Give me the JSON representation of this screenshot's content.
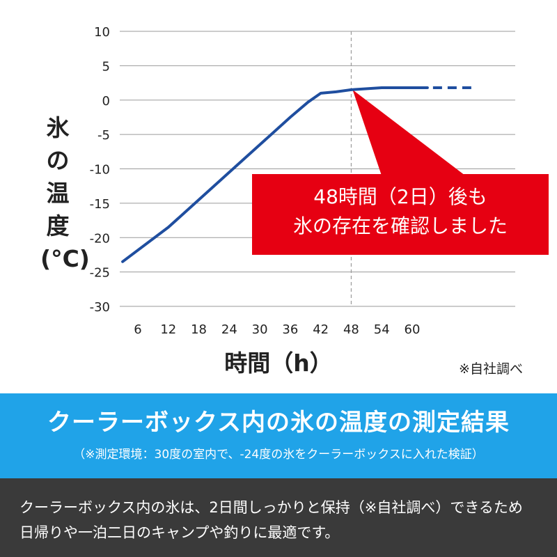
{
  "chart_data": {
    "type": "line",
    "y_title_lines": [
      "氷",
      "の",
      "温",
      "度",
      "(°C)"
    ],
    "xlabel": "時間（h）",
    "ylim": [
      -30,
      10
    ],
    "yticks": [
      "10",
      "5",
      "0",
      "-5",
      "-10",
      "-15",
      "-20",
      "-25",
      "-30"
    ],
    "xticks": [
      "6",
      "12",
      "18",
      "24",
      "30",
      "36",
      "42",
      "48",
      "54",
      "60"
    ],
    "grid": true,
    "series": [
      {
        "color": "#1f4e9f",
        "x": [
          3,
          12,
          18,
          24,
          30,
          36,
          39.5,
          42,
          45,
          48,
          54,
          60,
          63
        ],
        "y": [
          -23.5,
          -18.5,
          -14.5,
          -10.5,
          -6.5,
          -2.5,
          -0.3,
          1,
          1.2,
          1.5,
          1.8,
          1.8,
          1.8
        ],
        "projected": {
          "x": [
            63,
            72
          ],
          "y": [
            1.8,
            1.8
          ]
        }
      }
    ],
    "marker_x": 48,
    "callout_lines": [
      "48時間（2日）後も",
      "氷の存在を確認しました"
    ],
    "callout_color": "#e60012",
    "note": "※自社調べ"
  },
  "banner": {
    "title": "クーラーボックス内の氷の温度の測定結果",
    "subtitle": "（※測定環境：30度の室内で、-24度の氷をクーラーボックスに入れた検証）",
    "color": "#20a3e8"
  },
  "footer": {
    "lines": [
      "クーラーボックス内の氷は、2日間しっかりと保持（※自社調べ）できるため",
      "日帰りや一泊二日のキャンプや釣りに最適です。"
    ],
    "color": "#3a3a3a"
  }
}
